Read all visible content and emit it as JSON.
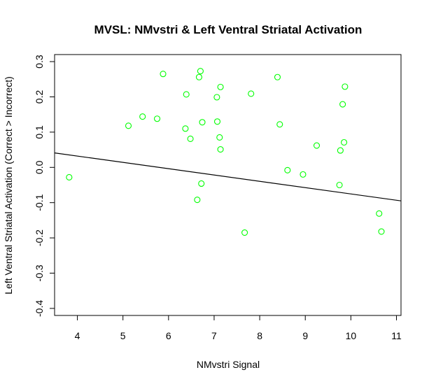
{
  "chart_data": {
    "type": "scatter",
    "title": "MVSL: NMvstri & Left Ventral Striatal Activation",
    "xlabel": "NMvstri Signal",
    "ylabel": "Left Ventral Striatal Activation (Correct > Incorrect)",
    "xlim": [
      3.5,
      11.1
    ],
    "ylim": [
      -0.42,
      0.32
    ],
    "x_ticks": [
      4,
      5,
      6,
      7,
      8,
      9,
      10,
      11
    ],
    "y_ticks": [
      -0.4,
      -0.3,
      -0.2,
      -0.1,
      0.0,
      0.1,
      0.2,
      0.3
    ],
    "y_tick_labels": [
      "-0.4",
      "-0.3",
      "-0.2",
      "-0.1",
      "0.0",
      "0.1",
      "0.2",
      "0.3"
    ],
    "point_color": "#00ff00",
    "line_color": "#000000",
    "grid": false,
    "regression_line": {
      "x": [
        3.5,
        11.1
      ],
      "y": [
        0.041,
        -0.095
      ]
    },
    "points": [
      {
        "x": 3.82,
        "y": -0.028
      },
      {
        "x": 5.12,
        "y": 0.118
      },
      {
        "x": 5.43,
        "y": 0.144
      },
      {
        "x": 5.75,
        "y": 0.138
      },
      {
        "x": 5.88,
        "y": 0.265
      },
      {
        "x": 6.37,
        "y": 0.11
      },
      {
        "x": 6.39,
        "y": 0.207
      },
      {
        "x": 6.48,
        "y": 0.081
      },
      {
        "x": 6.63,
        "y": -0.092
      },
      {
        "x": 6.67,
        "y": 0.256
      },
      {
        "x": 6.7,
        "y": 0.273
      },
      {
        "x": 6.72,
        "y": -0.046
      },
      {
        "x": 6.74,
        "y": 0.128
      },
      {
        "x": 7.06,
        "y": 0.199
      },
      {
        "x": 7.07,
        "y": 0.13
      },
      {
        "x": 7.12,
        "y": 0.085
      },
      {
        "x": 7.14,
        "y": 0.228
      },
      {
        "x": 7.14,
        "y": 0.051
      },
      {
        "x": 7.67,
        "y": -0.185
      },
      {
        "x": 7.81,
        "y": 0.209
      },
      {
        "x": 8.39,
        "y": 0.256
      },
      {
        "x": 8.44,
        "y": 0.122
      },
      {
        "x": 8.61,
        "y": -0.008
      },
      {
        "x": 8.95,
        "y": -0.02
      },
      {
        "x": 9.25,
        "y": 0.062
      },
      {
        "x": 9.75,
        "y": -0.05
      },
      {
        "x": 9.77,
        "y": 0.048
      },
      {
        "x": 9.82,
        "y": 0.179
      },
      {
        "x": 9.85,
        "y": 0.071
      },
      {
        "x": 9.87,
        "y": 0.229
      },
      {
        "x": 10.62,
        "y": -0.131
      },
      {
        "x": 10.67,
        "y": -0.182
      }
    ]
  }
}
